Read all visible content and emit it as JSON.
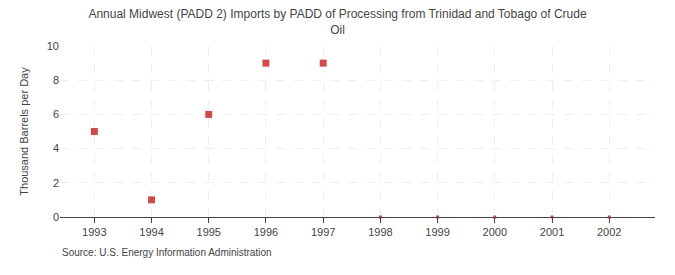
{
  "chart_data": {
    "type": "scatter",
    "title": "Annual Midwest (PADD 2) Imports by PADD of Processing from Trinidad and Tobago of Crude\nOil",
    "ylabel": "Thousand Barrels per Day",
    "source": "Source: U.S. Energy Information Administration",
    "x": [
      1993,
      1994,
      1995,
      1996,
      1997,
      1998,
      1999,
      2000,
      2001,
      2002
    ],
    "values": [
      5,
      1,
      6,
      9,
      9,
      0,
      0,
      0,
      0,
      0
    ],
    "color": "#bb0000",
    "marker": "square",
    "xlim": [
      1992.4,
      2002.8
    ],
    "ylim": [
      0,
      10
    ],
    "xticks": [
      1993,
      1994,
      1995,
      1996,
      1997,
      1998,
      1999,
      2000,
      2001,
      2002
    ],
    "yticks": [
      0,
      2,
      4,
      6,
      8,
      10
    ],
    "grid": true
  }
}
